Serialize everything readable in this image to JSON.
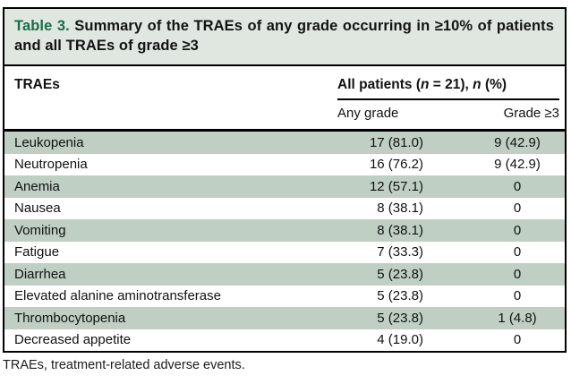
{
  "colors": {
    "accent_green": "#176e47",
    "title_bg": "#dfe7e0",
    "band": "#bfcfc4"
  },
  "table": {
    "title_label": "Table 3.",
    "title_text": " Summary of the TRAEs of any grade occurring in ≥10% of patients and all TRAEs of grade ≥3",
    "col1_header": "TRAEs",
    "group_header": {
      "p1": "All patients (",
      "n1": "n",
      "p2": " = 21), ",
      "n2": "n",
      "p3": " (%)"
    },
    "subheaders": [
      "Any grade",
      "Grade ≥3"
    ],
    "rows": [
      {
        "name": "Leukopenia",
        "any_grade": "17 (81.0)",
        "grade3": "9 (42.9)"
      },
      {
        "name": "Neutropenia",
        "any_grade": "16 (76.2)",
        "grade3": "9 (42.9)"
      },
      {
        "name": "Anemia",
        "any_grade": "12 (57.1)",
        "grade3": "0"
      },
      {
        "name": "Nausea",
        "any_grade": "8 (38.1)",
        "grade3": "0"
      },
      {
        "name": "Vomiting",
        "any_grade": "8 (38.1)",
        "grade3": "0"
      },
      {
        "name": "Fatigue",
        "any_grade": "7 (33.3)",
        "grade3": "0"
      },
      {
        "name": "Diarrhea",
        "any_grade": "5 (23.8)",
        "grade3": "0"
      },
      {
        "name": "Elevated alanine aminotransferase",
        "any_grade": "5 (23.8)",
        "grade3": "0"
      },
      {
        "name": "Thrombocytopenia",
        "any_grade": "5 (23.8)",
        "grade3": "1 (4.8)"
      },
      {
        "name": "Decreased appetite",
        "any_grade": "4 (19.0)",
        "grade3": "0"
      }
    ],
    "footnote": "TRAEs, treatment-related adverse events."
  }
}
